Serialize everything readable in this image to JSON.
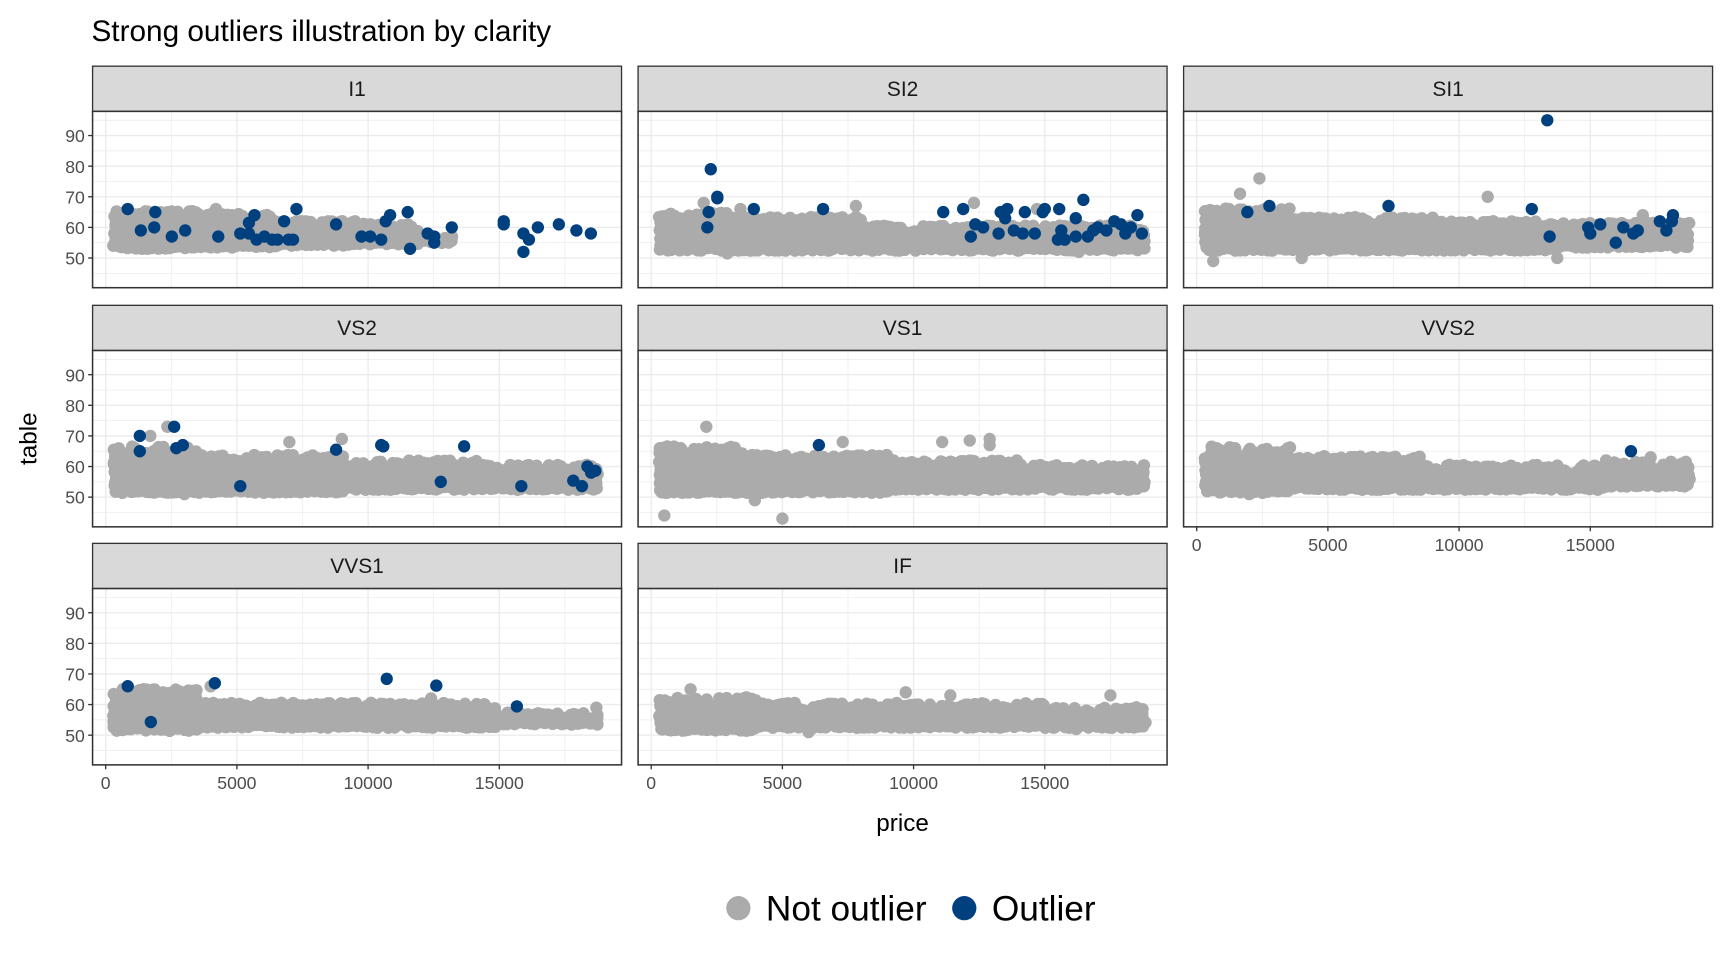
{
  "chart_data": {
    "type": "scatter",
    "title": "Strong outliers illustration by clarity",
    "xlabel": "price",
    "ylabel": "table",
    "xlim": [
      -500,
      19660
    ],
    "ylim": [
      40.3,
      97.9
    ],
    "x_ticks": [
      0,
      5000,
      10000,
      15000
    ],
    "y_ticks": [
      50,
      60,
      70,
      80,
      90
    ],
    "grid": true,
    "facet_by": "clarity",
    "legend": {
      "position": "bottom",
      "entries": [
        {
          "label": "Not outlier",
          "color": "#ABABAB"
        },
        {
          "label": "Outlier",
          "color": "#00407F"
        }
      ]
    },
    "panels": [
      {
        "name": "I1",
        "not_outlier_bands": [
          [
            350,
            3500,
            53.5,
            65
          ],
          [
            3500,
            6500,
            54,
            64
          ],
          [
            6500,
            9500,
            54.5,
            62
          ],
          [
            9500,
            12000,
            55,
            61
          ],
          [
            12000,
            13200,
            55.5,
            58
          ]
        ],
        "not_outlier_points": [
          [
            4200,
            66
          ],
          [
            8500,
            60
          ],
          [
            13200,
            57
          ],
          [
            9500,
            62
          ],
          [
            11000,
            56
          ]
        ],
        "outlier_points": [
          [
            840,
            66
          ],
          [
            1340,
            59
          ],
          [
            1850,
            60
          ],
          [
            1890,
            65
          ],
          [
            2520,
            57
          ],
          [
            3030,
            59
          ],
          [
            4290,
            57
          ],
          [
            5130,
            58
          ],
          [
            5460,
            61.5
          ],
          [
            5460,
            58
          ],
          [
            5670,
            64
          ],
          [
            5750,
            56
          ],
          [
            6050,
            57
          ],
          [
            6340,
            56
          ],
          [
            6550,
            56
          ],
          [
            6800,
            62
          ],
          [
            6970,
            56
          ],
          [
            7140,
            56
          ],
          [
            7270,
            66
          ],
          [
            8780,
            61
          ],
          [
            9750,
            57
          ],
          [
            10080,
            57
          ],
          [
            10500,
            56
          ],
          [
            10670,
            62
          ],
          [
            10840,
            64
          ],
          [
            11510,
            65
          ],
          [
            11600,
            53
          ],
          [
            12270,
            58
          ],
          [
            12520,
            55
          ],
          [
            12520,
            57
          ],
          [
            13190,
            60
          ],
          [
            15170,
            62
          ],
          [
            15170,
            61
          ],
          [
            15920,
            58
          ],
          [
            15920,
            52
          ],
          [
            16130,
            56
          ],
          [
            16470,
            60
          ],
          [
            17270,
            61
          ],
          [
            17940,
            59
          ],
          [
            18490,
            58
          ]
        ]
      },
      {
        "name": "SI2",
        "not_outlier_bands": [
          [
            350,
            3000,
            53,
            65
          ],
          [
            3000,
            8000,
            53,
            63
          ],
          [
            8000,
            13000,
            53,
            61
          ],
          [
            13000,
            18800,
            53,
            61
          ]
        ],
        "not_outlier_points": [
          [
            2000,
            68
          ],
          [
            3400,
            66
          ],
          [
            7800,
            67
          ],
          [
            12300,
            68
          ],
          [
            14700,
            66
          ],
          [
            2900,
            51.5
          ],
          [
            16300,
            52
          ]
        ],
        "outlier_points": [
          [
            2270,
            79
          ],
          [
            2520,
            69.5
          ],
          [
            2520,
            70
          ],
          [
            2190,
            65
          ],
          [
            2140,
            60
          ],
          [
            3910,
            66
          ],
          [
            6550,
            66
          ],
          [
            11130,
            65
          ],
          [
            11890,
            66
          ],
          [
            12180,
            57
          ],
          [
            12350,
            61
          ],
          [
            12650,
            60
          ],
          [
            13240,
            58
          ],
          [
            13320,
            65
          ],
          [
            13570,
            66
          ],
          [
            13490,
            63
          ],
          [
            13820,
            59
          ],
          [
            14240,
            65
          ],
          [
            14160,
            58
          ],
          [
            14620,
            58
          ],
          [
            14920,
            65
          ],
          [
            15000,
            66
          ],
          [
            15500,
            56
          ],
          [
            15550,
            66
          ],
          [
            15630,
            59
          ],
          [
            15760,
            56
          ],
          [
            16180,
            63
          ],
          [
            16180,
            57
          ],
          [
            16470,
            69
          ],
          [
            16640,
            57
          ],
          [
            16850,
            59
          ],
          [
            17020,
            60
          ],
          [
            17350,
            59
          ],
          [
            17650,
            62
          ],
          [
            17900,
            61
          ],
          [
            18070,
            58
          ],
          [
            18280,
            60
          ],
          [
            18530,
            64
          ],
          [
            18700,
            58
          ]
        ]
      },
      {
        "name": "SI1",
        "not_outlier_bands": [
          [
            350,
            3500,
            53,
            66
          ],
          [
            3500,
            9000,
            53,
            63
          ],
          [
            9000,
            13500,
            53,
            62
          ],
          [
            13500,
            18800,
            54,
            61
          ]
        ],
        "not_outlier_points": [
          [
            2390,
            76
          ],
          [
            1650,
            71
          ],
          [
            11090,
            70
          ],
          [
            630,
            49
          ],
          [
            13740,
            50
          ],
          [
            4000,
            50
          ],
          [
            17000,
            64
          ]
        ],
        "outlier_points": [
          [
            13360,
            95
          ],
          [
            1930,
            65
          ],
          [
            2770,
            67
          ],
          [
            7310,
            67
          ],
          [
            12770,
            66
          ],
          [
            13450,
            57
          ],
          [
            14920,
            60
          ],
          [
            15000,
            58
          ],
          [
            15380,
            61
          ],
          [
            15970,
            55
          ],
          [
            16260,
            60
          ],
          [
            16640,
            58
          ],
          [
            16810,
            59
          ],
          [
            17650,
            62
          ],
          [
            17900,
            59
          ],
          [
            18110,
            62
          ],
          [
            18150,
            64
          ]
        ]
      },
      {
        "name": "VS2",
        "not_outlier_bands": [
          [
            350,
            3500,
            52,
            66
          ],
          [
            3500,
            9000,
            52,
            64
          ],
          [
            9000,
            14500,
            53,
            62
          ],
          [
            14500,
            18800,
            53,
            61
          ]
        ],
        "not_outlier_points": [
          [
            2350,
            73
          ],
          [
            9000,
            69
          ],
          [
            1700,
            70
          ],
          [
            3000,
            51
          ],
          [
            7000,
            68
          ]
        ],
        "outlier_points": [
          [
            1300,
            70
          ],
          [
            1300,
            65
          ],
          [
            2610,
            73
          ],
          [
            2690,
            66
          ],
          [
            2940,
            67
          ],
          [
            5130,
            53.6
          ],
          [
            8780,
            65.5
          ],
          [
            10500,
            67
          ],
          [
            10580,
            66.6
          ],
          [
            12770,
            55
          ],
          [
            13660,
            66.6
          ],
          [
            15840,
            53.6
          ],
          [
            17820,
            55.4
          ],
          [
            18150,
            53.6
          ],
          [
            18360,
            60
          ],
          [
            18660,
            58.6
          ],
          [
            18500,
            58
          ]
        ]
      },
      {
        "name": "VS1",
        "not_outlier_bands": [
          [
            350,
            3500,
            52,
            66
          ],
          [
            3500,
            9000,
            52,
            64
          ],
          [
            9000,
            14000,
            53,
            62
          ],
          [
            14000,
            18800,
            53,
            61
          ]
        ],
        "not_outlier_points": [
          [
            2100,
            73
          ],
          [
            500,
            44
          ],
          [
            3950,
            49
          ],
          [
            5000,
            43
          ],
          [
            11090,
            68
          ],
          [
            12900,
            69
          ],
          [
            12140,
            68.5
          ],
          [
            12900,
            67
          ],
          [
            7300,
            68
          ]
        ],
        "outlier_points": [
          [
            6390,
            67
          ]
        ]
      },
      {
        "name": "VVS2",
        "not_outlier_bands": [
          [
            350,
            3500,
            52,
            66
          ],
          [
            3500,
            8500,
            53,
            63
          ],
          [
            8500,
            15500,
            53,
            60
          ],
          [
            15500,
            18800,
            54,
            61
          ]
        ],
        "not_outlier_points": [
          [
            2000,
            51
          ],
          [
            15600,
            62
          ],
          [
            17300,
            63
          ],
          [
            18700,
            60
          ]
        ],
        "outlier_points": [
          [
            16550,
            65
          ]
        ]
      },
      {
        "name": "VVS1",
        "not_outlier_bands": [
          [
            350,
            3500,
            52,
            65
          ],
          [
            3500,
            9000,
            53,
            61
          ],
          [
            9000,
            15000,
            53,
            60
          ],
          [
            15000,
            18800,
            54,
            58
          ]
        ],
        "not_outlier_points": [
          [
            4000,
            66
          ],
          [
            2900,
            64
          ],
          [
            12400,
            62
          ],
          [
            18700,
            59
          ]
        ],
        "outlier_points": [
          [
            840,
            66
          ],
          [
            1720,
            54.3
          ],
          [
            4160,
            67
          ],
          [
            10710,
            68.4
          ],
          [
            12600,
            66.2
          ],
          [
            15670,
            59.4
          ]
        ]
      },
      {
        "name": "IF",
        "not_outlier_bands": [
          [
            350,
            4000,
            52,
            62
          ],
          [
            4000,
            9500,
            53,
            60
          ],
          [
            9500,
            15000,
            53,
            60
          ],
          [
            15000,
            18800,
            53,
            59
          ]
        ],
        "not_outlier_points": [
          [
            1500,
            65
          ],
          [
            9700,
            64
          ],
          [
            11400,
            63
          ],
          [
            17500,
            63
          ],
          [
            6000,
            51
          ],
          [
            16200,
            52
          ]
        ],
        "outlier_points": []
      }
    ]
  }
}
